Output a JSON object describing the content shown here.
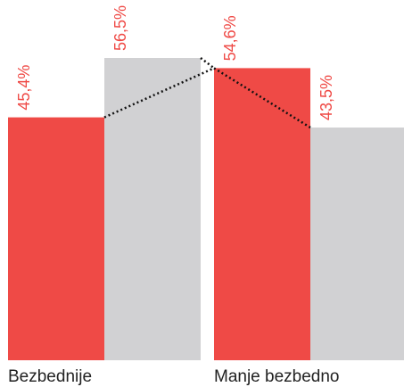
{
  "chart_data": {
    "type": "bar",
    "categories": [
      "Bezbednije",
      "Manje bezbedno"
    ],
    "series": [
      {
        "values": [
          45.4,
          54.6
        ],
        "labels": [
          "45,4%",
          "54,6%"
        ],
        "color": "#ef4a46"
      },
      {
        "values": [
          56.5,
          43.5
        ],
        "labels": [
          "56,5%",
          "43,5%"
        ],
        "color": "#d1d1d3"
      }
    ],
    "ylim": [
      0,
      60
    ],
    "grid": false,
    "connector_lines": "dotted",
    "label_color": "#ef4a46"
  }
}
